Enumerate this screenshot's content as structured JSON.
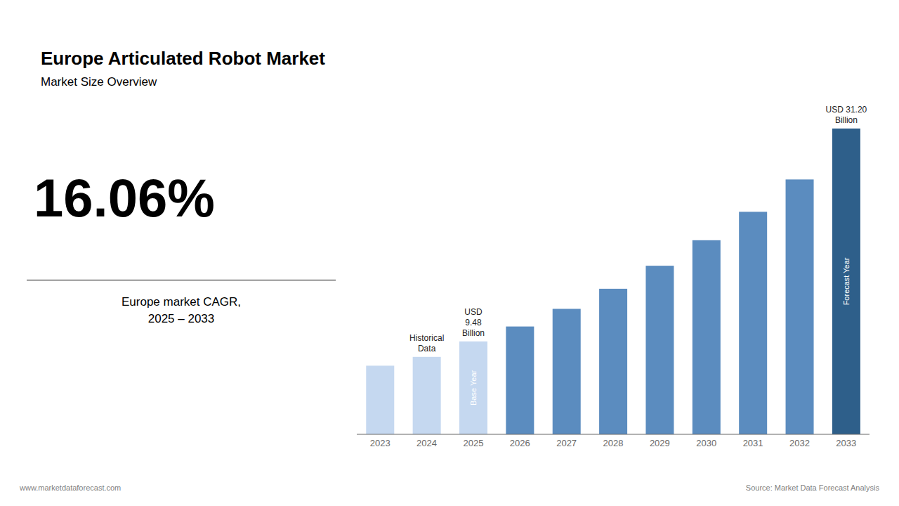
{
  "chart_data": {
    "type": "bar",
    "title": "Europe Articulated Robot Market",
    "subtitle": "Market Size Overview",
    "categories": [
      "2023",
      "2024",
      "2025",
      "2026",
      "2027",
      "2028",
      "2029",
      "2030",
      "2031",
      "2032",
      "2033"
    ],
    "values": [
      7.0,
      7.9,
      9.48,
      11.0,
      12.8,
      14.85,
      17.2,
      19.8,
      22.7,
      26.0,
      31.2
    ],
    "colors": [
      "#c5d8f0",
      "#c5d8f0",
      "#c5d8f0",
      "#5b8cbf",
      "#5b8cbf",
      "#5b8cbf",
      "#5b8cbf",
      "#5b8cbf",
      "#5b8cbf",
      "#5b8cbf",
      "#2e5f8a"
    ],
    "ylim": [
      0,
      38
    ],
    "grid": false,
    "tick_labels": "x",
    "annotations": [
      {
        "text": "Base Year",
        "category": "2025"
      },
      {
        "text": "Forecast Year",
        "category": "2033"
      },
      {
        "text": "Historical\nData",
        "category": "2024"
      },
      {
        "text": "USD\n9.48\nBillion",
        "category": "2025"
      },
      {
        "text": "USD 31.20\nBillion",
        "category": "2033"
      },
      {
        "text": "16.06%"
      },
      {
        "text": "Europe market CAGR,\n2025 – 2033"
      },
      {
        "text": "www.marketdataforecast.com"
      },
      {
        "text": "Source: Market Data Forecast Analysis"
      }
    ]
  }
}
